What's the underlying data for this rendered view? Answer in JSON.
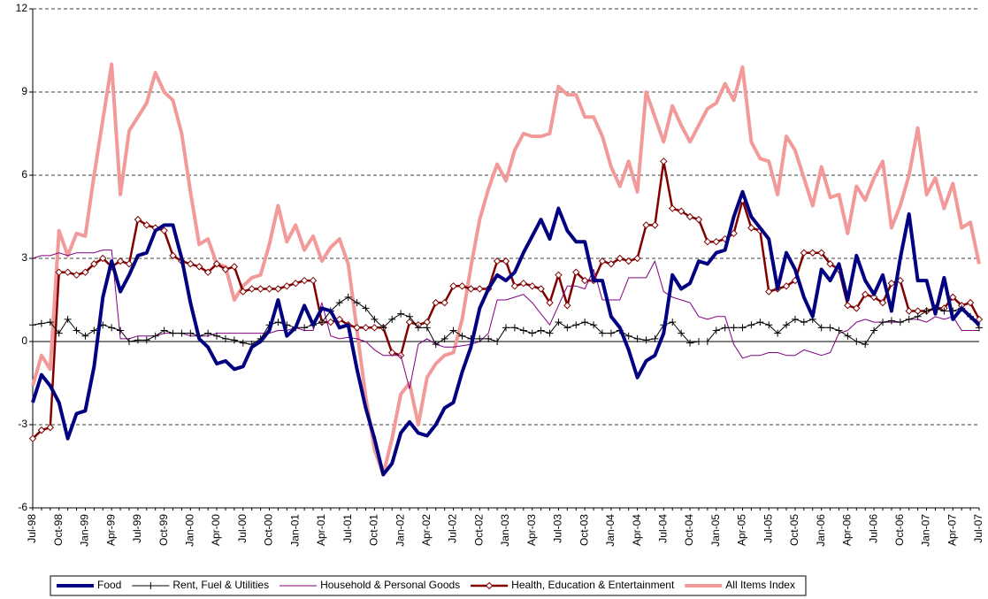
{
  "chart_data": {
    "type": "line",
    "categories": [
      "Jul-98",
      null,
      null,
      "Oct-98",
      null,
      null,
      "Jan-99",
      null,
      null,
      "Apr-99",
      null,
      null,
      "Jul-99",
      null,
      null,
      "Oct-99",
      null,
      null,
      "Jan-00",
      null,
      null,
      "Apr-00",
      null,
      null,
      "Jul-00",
      null,
      null,
      "Oct-00",
      null,
      null,
      "Jan-01",
      null,
      null,
      "Apr-01",
      null,
      null,
      "Jul-01",
      null,
      null,
      "Oct-01",
      null,
      null,
      "Jan-02",
      null,
      null,
      "Apr-02",
      null,
      null,
      "Jul-02",
      null,
      null,
      "Oct-02",
      null,
      null,
      "Jan-03",
      null,
      null,
      "Apr-03",
      null,
      null,
      "Jul-03",
      null,
      null,
      "Oct-03",
      null,
      null,
      "Jan-04",
      null,
      null,
      "Apr-04",
      null,
      null,
      "Jul-04",
      null,
      null,
      "Oct-04",
      null,
      null,
      "Jan-05",
      null,
      null,
      "Apr-05",
      null,
      null,
      "Jul-05",
      null,
      null,
      "Oct-05",
      null,
      null,
      "Jan-06",
      null,
      null,
      "Apr-06",
      null,
      null,
      "Jul-06",
      null,
      null,
      "Oct-06",
      null,
      null,
      "Jan-07",
      null,
      null,
      "Apr-07",
      null,
      null,
      "Jul-07"
    ],
    "series": [
      {
        "name": "Food",
        "color": "#000080",
        "values": [
          -2.2,
          -1.2,
          -1.6,
          -2.2,
          -3.5,
          -2.6,
          -2.5,
          -0.9,
          1.6,
          2.9,
          1.8,
          2.4,
          3.1,
          3.2,
          4.0,
          4.2,
          4.2,
          3.0,
          1.4,
          0.1,
          -0.2,
          -0.8,
          -0.7,
          -1.0,
          -0.9,
          -0.2,
          0.0,
          0.4,
          1.5,
          0.2,
          0.5,
          1.3,
          0.6,
          1.2,
          1.1,
          0.5,
          0.6,
          -1.0,
          -2.4,
          -3.5,
          -4.8,
          -4.4,
          -3.3,
          -2.9,
          -3.3,
          -3.4,
          -3.0,
          -2.4,
          -2.2,
          -1.1,
          -0.2,
          1.2,
          1.9,
          2.4,
          2.2,
          2.5,
          3.2,
          3.8,
          4.4,
          3.7,
          4.8,
          4.0,
          3.6,
          3.6,
          2.2,
          2.2,
          0.9,
          0.5,
          -0.3,
          -1.3,
          -0.7,
          -0.5,
          0.3,
          2.4,
          1.9,
          2.1,
          2.9,
          2.8,
          3.2,
          3.3,
          4.5,
          5.4,
          4.5,
          4.1,
          3.7,
          1.9,
          3.2,
          2.6,
          1.6,
          0.9,
          2.6,
          2.2,
          2.8,
          1.5,
          3.1,
          2.2,
          1.7,
          2.4,
          1.1,
          3.0,
          4.6,
          2.2,
          2.2,
          1.0,
          2.3,
          0.8,
          1.2,
          0.9,
          0.6
        ]
      },
      {
        "name": "Rent, Fuel & Utilities",
        "color": "#000000",
        "marker": "plus",
        "values": [
          0.6,
          0.65,
          0.7,
          0.3,
          0.8,
          0.4,
          0.2,
          0.4,
          0.6,
          0.5,
          0.4,
          0.0,
          0.05,
          0.05,
          0.2,
          0.4,
          0.3,
          0.3,
          0.3,
          0.2,
          0.3,
          0.2,
          0.1,
          0.05,
          -0.05,
          -0.1,
          0.1,
          0.6,
          0.7,
          0.6,
          0.5,
          0.5,
          0.6,
          0.7,
          1.1,
          1.4,
          1.6,
          1.4,
          1.2,
          0.8,
          0.5,
          0.8,
          1.0,
          0.9,
          0.5,
          0.5,
          -0.1,
          0.1,
          0.4,
          0.2,
          0.1,
          0.1,
          0.1,
          0.0,
          0.5,
          0.5,
          0.4,
          0.3,
          0.4,
          0.3,
          0.7,
          0.5,
          0.6,
          0.7,
          0.6,
          0.3,
          0.3,
          0.4,
          0.2,
          0.1,
          0.05,
          0.1,
          0.6,
          0.7,
          0.3,
          -0.05,
          0.0,
          0.0,
          0.4,
          0.5,
          0.5,
          0.5,
          0.6,
          0.7,
          0.6,
          0.3,
          0.6,
          0.8,
          0.7,
          0.8,
          0.5,
          0.5,
          0.4,
          0.2,
          0.0,
          -0.1,
          0.4,
          0.7,
          0.75,
          0.7,
          0.8,
          0.9,
          1.1,
          1.2,
          1.1,
          1.1,
          1.2,
          0.9,
          0.5
        ]
      },
      {
        "name": "Household & Personal Goods",
        "color": "#800080",
        "values": [
          3.0,
          3.1,
          3.1,
          3.2,
          3.1,
          3.2,
          3.2,
          3.2,
          3.3,
          3.3,
          0.1,
          0.1,
          0.2,
          0.2,
          0.2,
          0.3,
          0.3,
          0.3,
          0.2,
          0.2,
          0.2,
          0.3,
          0.3,
          0.3,
          0.3,
          0.3,
          0.3,
          0.3,
          0.4,
          0.4,
          0.5,
          0.4,
          0.4,
          1.4,
          0.2,
          0.1,
          0.15,
          0.1,
          0.0,
          -0.3,
          -0.5,
          -0.5,
          -0.5,
          -1.7,
          -0.1,
          0.1,
          -0.1,
          -0.2,
          -0.2,
          -0.15,
          -0.1,
          0.0,
          0.3,
          1.5,
          1.5,
          1.6,
          1.7,
          1.4,
          1.0,
          0.6,
          1.3,
          2.0,
          2.0,
          1.9,
          2.6,
          1.5,
          1.5,
          1.5,
          2.3,
          2.3,
          2.3,
          2.9,
          1.8,
          1.6,
          1.5,
          1.4,
          0.9,
          0.8,
          0.9,
          0.9,
          -0.1,
          -0.6,
          -0.5,
          -0.5,
          -0.4,
          -0.4,
          -0.5,
          -0.5,
          -0.3,
          -0.4,
          -0.5,
          -0.4,
          0.3,
          0.4,
          0.7,
          0.8,
          0.7,
          0.7,
          0.7,
          0.7,
          0.8,
          0.8,
          0.7,
          0.9,
          0.8,
          0.9,
          0.4,
          0.4,
          0.4
        ]
      },
      {
        "name": "Health, Education & Entertainment",
        "color": "#800000",
        "marker": "diamond",
        "values": [
          -3.5,
          -3.2,
          -3.1,
          2.5,
          2.5,
          2.4,
          2.5,
          2.8,
          3.0,
          2.7,
          2.9,
          2.8,
          4.4,
          4.2,
          4.1,
          4.0,
          3.1,
          2.9,
          2.8,
          2.7,
          2.5,
          2.8,
          2.6,
          2.7,
          1.8,
          1.9,
          1.9,
          1.9,
          1.9,
          2.0,
          2.1,
          2.2,
          2.2,
          0.7,
          0.7,
          0.8,
          0.6,
          0.5,
          0.5,
          0.5,
          0.5,
          -0.4,
          -0.5,
          0.7,
          0.6,
          0.7,
          1.4,
          1.4,
          2.0,
          2.0,
          1.9,
          1.9,
          1.9,
          2.9,
          2.9,
          2.0,
          2.1,
          2.0,
          1.9,
          1.4,
          2.4,
          1.3,
          2.5,
          2.2,
          2.2,
          2.9,
          2.8,
          3.0,
          2.9,
          3.0,
          4.2,
          4.2,
          6.5,
          4.8,
          4.7,
          4.5,
          4.4,
          3.6,
          3.6,
          3.7,
          3.9,
          5.1,
          4.1,
          4.0,
          1.8,
          1.9,
          2.0,
          2.2,
          3.2,
          3.2,
          3.2,
          2.8,
          2.6,
          1.3,
          1.2,
          1.7,
          1.6,
          1.4,
          2.1,
          2.2,
          1.1,
          1.1,
          1.1,
          1.2,
          1.2,
          1.6,
          1.3,
          1.4,
          0.8
        ]
      },
      {
        "name": "All Items Index",
        "color": "#f29a9a",
        "values": [
          -1.6,
          -0.5,
          -1.0,
          4.0,
          3.1,
          3.9,
          3.8,
          6.0,
          8.0,
          10.0,
          5.3,
          7.6,
          8.1,
          8.6,
          9.7,
          9.0,
          8.7,
          7.5,
          5.4,
          3.5,
          3.7,
          2.8,
          2.7,
          1.5,
          2.0,
          2.3,
          2.4,
          3.5,
          4.9,
          3.6,
          4.2,
          3.3,
          3.8,
          2.9,
          3.4,
          3.7,
          2.8,
          0.4,
          -2.0,
          -3.9,
          -4.8,
          -3.5,
          -1.9,
          -1.5,
          -3.0,
          -1.3,
          -0.8,
          -0.5,
          -0.4,
          0.8,
          2.7,
          4.4,
          5.5,
          6.4,
          5.8,
          6.9,
          7.5,
          7.4,
          7.4,
          7.5,
          9.2,
          8.9,
          8.9,
          8.1,
          8.1,
          7.4,
          6.3,
          5.6,
          6.5,
          5.4,
          9.0,
          8.1,
          7.2,
          8.5,
          7.8,
          7.2,
          7.8,
          8.4,
          8.6,
          9.3,
          8.7,
          9.9,
          7.2,
          6.6,
          6.5,
          5.3,
          7.4,
          6.9,
          5.9,
          4.9,
          6.3,
          5.2,
          5.3,
          3.9,
          5.6,
          5.1,
          5.9,
          6.5,
          4.1,
          4.9,
          6.0,
          7.7,
          5.3,
          5.9,
          4.8,
          5.7,
          4.1,
          4.3,
          2.8
        ]
      }
    ],
    "ylim": [
      -6,
      12
    ],
    "yticks": [
      -6,
      -3,
      0,
      3,
      6,
      9,
      12
    ],
    "grid": true,
    "legend": "bottom"
  }
}
